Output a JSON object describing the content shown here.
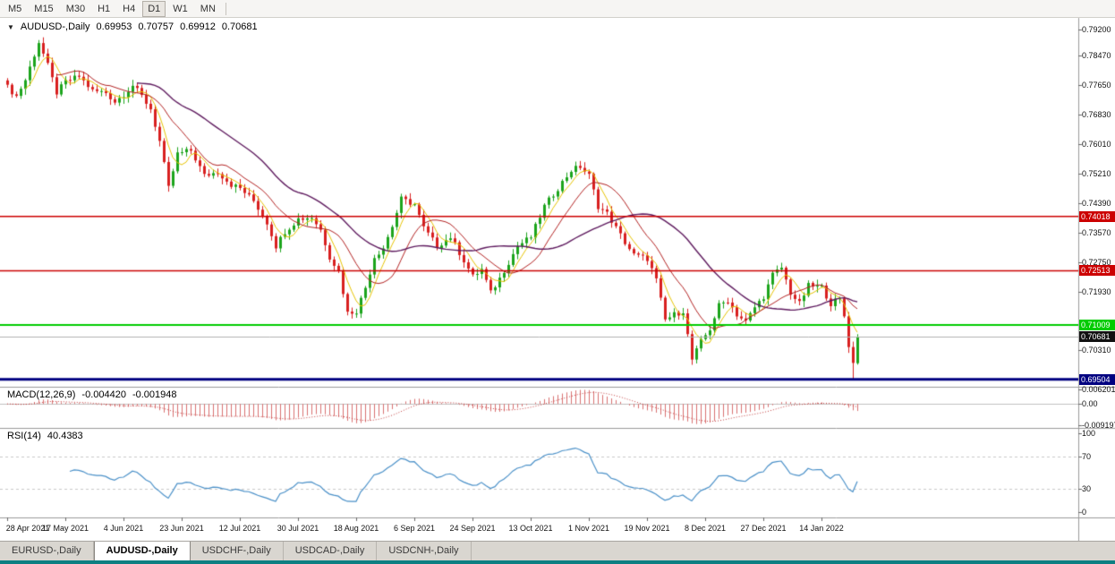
{
  "toolbar": {
    "timeframes": [
      "M5",
      "M15",
      "M30",
      "H1",
      "H4",
      "D1",
      "W1",
      "MN"
    ],
    "active": "D1"
  },
  "chart_header": {
    "collapse_icon": "▼",
    "symbol": "AUDUSD-,Daily",
    "open": "0.69953",
    "high": "0.70757",
    "low": "0.69912",
    "close": "0.70681"
  },
  "indicators": {
    "macd": {
      "label": "MACD(12,26,9)",
      "value_main": "-0.004420",
      "value_signal": "-0.001948",
      "axis_labels": [
        {
          "v": 0.006201,
          "label": "0.006201"
        },
        {
          "v": 0,
          "label": "0.00"
        },
        {
          "v": -0.009197,
          "label": "-0.009197"
        }
      ]
    },
    "rsi": {
      "label": "RSI(14)",
      "value": "40.4383",
      "axis_labels": [
        {
          "v": 100,
          "label": "100"
        },
        {
          "v": 70,
          "label": "70"
        },
        {
          "v": 30,
          "label": "30"
        },
        {
          "v": 0,
          "label": "0"
        }
      ]
    }
  },
  "price_axis": {
    "ticks": [
      {
        "v": 0.792,
        "label": "0.79200"
      },
      {
        "v": 0.7847,
        "label": "0.78470"
      },
      {
        "v": 0.7765,
        "label": "0.77650"
      },
      {
        "v": 0.7683,
        "label": "0.76830"
      },
      {
        "v": 0.7601,
        "label": "0.76010"
      },
      {
        "v": 0.7521,
        "label": "0.75210"
      },
      {
        "v": 0.7439,
        "label": "0.74390"
      },
      {
        "v": 0.7357,
        "label": "0.73570"
      },
      {
        "v": 0.7275,
        "label": "0.72750"
      },
      {
        "v": 0.7193,
        "label": "0.71930"
      },
      {
        "v": 0.7031,
        "label": "0.70310"
      }
    ]
  },
  "x_axis": {
    "labels": [
      {
        "i": 0,
        "label": "28 Apr 2021"
      },
      {
        "i": 13,
        "label": "17 May 2021"
      },
      {
        "i": 26,
        "label": "4 Jun 2021"
      },
      {
        "i": 39,
        "label": "23 Jun 2021"
      },
      {
        "i": 52,
        "label": "12 Jul 2021"
      },
      {
        "i": 65,
        "label": "30 Jul 2021"
      },
      {
        "i": 78,
        "label": "18 Aug 2021"
      },
      {
        "i": 91,
        "label": "6 Sep 2021"
      },
      {
        "i": 104,
        "label": "24 Sep 2021"
      },
      {
        "i": 117,
        "label": "13 Oct 2021"
      },
      {
        "i": 130,
        "label": "1 Nov 2021"
      },
      {
        "i": 143,
        "label": "19 Nov 2021"
      },
      {
        "i": 156,
        "label": "8 Dec 2021"
      },
      {
        "i": 169,
        "label": "27 Dec 2021"
      },
      {
        "i": 182,
        "label": "14 Jan 2022"
      }
    ]
  },
  "tabs": {
    "items": [
      "EURUSD-,Daily",
      "AUDUSD-,Daily",
      "USDCHF-,Daily",
      "USDCAD-,Daily",
      "USDCNH-,Daily"
    ],
    "active_index": 1
  },
  "chart_data": {
    "type": "candlestick",
    "symbol": "AUDUSD",
    "timeframe": "Daily",
    "bars": 191,
    "price_range": {
      "min": 0.693,
      "max": 0.7952
    },
    "macd_range": {
      "min": -0.0105,
      "max": 0.0075
    },
    "rsi_range": {
      "min": -7,
      "max": 107
    },
    "close_anchors": [
      [
        0,
        0.776
      ],
      [
        2,
        0.7735
      ],
      [
        4,
        0.778
      ],
      [
        6,
        0.785
      ],
      [
        7,
        0.7885
      ],
      [
        9,
        0.782
      ],
      [
        11,
        0.7745
      ],
      [
        13,
        0.7775
      ],
      [
        16,
        0.779
      ],
      [
        19,
        0.775
      ],
      [
        22,
        0.7745
      ],
      [
        24,
        0.772
      ],
      [
        26,
        0.774
      ],
      [
        28,
        0.7765
      ],
      [
        30,
        0.7735
      ],
      [
        32,
        0.77
      ],
      [
        34,
        0.761
      ],
      [
        36,
        0.748
      ],
      [
        38,
        0.7575
      ],
      [
        41,
        0.7585
      ],
      [
        44,
        0.7515
      ],
      [
        47,
        0.7525
      ],
      [
        50,
        0.749
      ],
      [
        52,
        0.748
      ],
      [
        55,
        0.7445
      ],
      [
        58,
        0.7385
      ],
      [
        60,
        0.732
      ],
      [
        62,
        0.736
      ],
      [
        65,
        0.7395
      ],
      [
        68,
        0.74
      ],
      [
        70,
        0.7365
      ],
      [
        72,
        0.729
      ],
      [
        74,
        0.725
      ],
      [
        76,
        0.7135
      ],
      [
        78,
        0.714
      ],
      [
        80,
        0.7205
      ],
      [
        82,
        0.729
      ],
      [
        84,
        0.7315
      ],
      [
        86,
        0.7375
      ],
      [
        88,
        0.745
      ],
      [
        91,
        0.7435
      ],
      [
        93,
        0.737
      ],
      [
        96,
        0.732
      ],
      [
        99,
        0.7345
      ],
      [
        102,
        0.728
      ],
      [
        104,
        0.7235
      ],
      [
        106,
        0.7255
      ],
      [
        108,
        0.719
      ],
      [
        110,
        0.723
      ],
      [
        112,
        0.7275
      ],
      [
        114,
        0.732
      ],
      [
        117,
        0.7345
      ],
      [
        120,
        0.743
      ],
      [
        123,
        0.748
      ],
      [
        126,
        0.753
      ],
      [
        128,
        0.754
      ],
      [
        130,
        0.7515
      ],
      [
        132,
        0.743
      ],
      [
        134,
        0.741
      ],
      [
        136,
        0.737
      ],
      [
        138,
        0.733
      ],
      [
        140,
        0.7295
      ],
      [
        143,
        0.7285
      ],
      [
        145,
        0.7225
      ],
      [
        147,
        0.7115
      ],
      [
        149,
        0.713
      ],
      [
        151,
        0.714
      ],
      [
        153,
        0.7005
      ],
      [
        155,
        0.7055
      ],
      [
        157,
        0.709
      ],
      [
        159,
        0.7155
      ],
      [
        161,
        0.717
      ],
      [
        163,
        0.713
      ],
      [
        165,
        0.711
      ],
      [
        167,
        0.715
      ],
      [
        169,
        0.718
      ],
      [
        171,
        0.724
      ],
      [
        173,
        0.726
      ],
      [
        175,
        0.719
      ],
      [
        177,
        0.716
      ],
      [
        179,
        0.721
      ],
      [
        182,
        0.7205
      ],
      [
        184,
        0.716
      ],
      [
        186,
        0.7175
      ],
      [
        187,
        0.7125
      ],
      [
        188,
        0.704
      ],
      [
        190,
        0.70681
      ]
    ],
    "explicit_candles": [
      {
        "i": 189,
        "o": 0.704,
        "h": 0.7055,
        "l": 0.6952,
        "c": 0.6996
      },
      {
        "i": 190,
        "o": 0.69953,
        "h": 0.70757,
        "l": 0.69912,
        "c": 0.70681
      }
    ],
    "moving_averages": [
      {
        "period": 5,
        "color": "#e6c300",
        "width": 1
      },
      {
        "period": 12,
        "color": "#b22222",
        "width": 1
      },
      {
        "period": 30,
        "color": "#5e1a5e",
        "width": 1.4
      }
    ],
    "macd": {
      "fast": 12,
      "slow": 26,
      "signal": 9
    },
    "rsi": {
      "period": 14,
      "levels": [
        70,
        30
      ]
    },
    "levels": [
      {
        "price": 0.74018,
        "label": "0.74018",
        "color": "#cc0000",
        "width": 1.4
      },
      {
        "price": 0.72513,
        "label": "0.72513",
        "color": "#cc0000",
        "width": 1.4
      },
      {
        "price": 0.71009,
        "label": "0.71009",
        "color": "#00cc00",
        "width": 2
      },
      {
        "price": 0.69504,
        "label": "0.69504",
        "color": "#000080",
        "width": 3
      }
    ],
    "current_price": {
      "value": 0.70681,
      "label": "0.70681",
      "color": "#111111"
    },
    "colors": {
      "candle_up": "#1ca41c",
      "candle_down": "#d81f1f",
      "macd_hist": "#d97070",
      "macd_signal": "#c03a3a",
      "rsi_line": "#4a90c8",
      "zero_line": "#c0c0c0",
      "separator": "#9a9a9a",
      "current_line": "#b0b0b0",
      "rsi_level_line": "#c8c8c8"
    }
  }
}
